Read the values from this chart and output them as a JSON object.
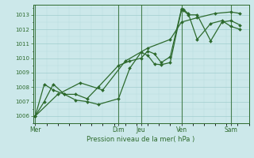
{
  "xlabel": "Pression niveau de la mer( hPa )",
  "bg_color": "#cce8ea",
  "line_color": "#2d6a2d",
  "grid_major_color": "#a0cece",
  "grid_minor_color": "#b8dede",
  "tick_color": "#2d6a2d",
  "spine_color": "#2d6a2d",
  "ylim": [
    1005.5,
    1013.7
  ],
  "yticks": [
    1006,
    1007,
    1008,
    1009,
    1010,
    1011,
    1012,
    1013
  ],
  "day_labels": [
    "Mer",
    "Dim",
    "Jeu",
    "Ven",
    "Sam"
  ],
  "day_positions": [
    0,
    37,
    47,
    65,
    87
  ],
  "xlim": [
    -1,
    95
  ],
  "line1_x": [
    0,
    4,
    8,
    13,
    18,
    23,
    28,
    37,
    42,
    47,
    50,
    53,
    56,
    60,
    65,
    66,
    68,
    72,
    78,
    83,
    87,
    91
  ],
  "line1_y": [
    1006.0,
    1007.0,
    1008.2,
    1007.5,
    1007.1,
    1007.0,
    1006.8,
    1007.2,
    1009.3,
    1010.4,
    1010.2,
    1009.6,
    1009.55,
    1009.7,
    1013.35,
    1013.3,
    1013.0,
    1013.0,
    1011.2,
    1012.5,
    1012.6,
    1012.3
  ],
  "line2_x": [
    0,
    4,
    8,
    13,
    18,
    23,
    28,
    37,
    42,
    47,
    50,
    53,
    56,
    60,
    65,
    66,
    68,
    72,
    78,
    83,
    87,
    91
  ],
  "line2_y": [
    1006.0,
    1008.2,
    1007.8,
    1007.5,
    1007.5,
    1007.2,
    1008.0,
    1009.5,
    1009.8,
    1010.0,
    1010.5,
    1010.3,
    1009.7,
    1010.1,
    1013.4,
    1013.35,
    1013.1,
    1011.3,
    1012.4,
    1012.6,
    1012.2,
    1012.0
  ],
  "line3_x": [
    0,
    10,
    20,
    30,
    40,
    50,
    60,
    65,
    72,
    80,
    87,
    91
  ],
  "line3_y": [
    1006.0,
    1007.5,
    1008.3,
    1007.8,
    1009.8,
    1010.7,
    1011.3,
    1012.5,
    1012.8,
    1013.1,
    1013.2,
    1013.1
  ],
  "marker_size": 2.0,
  "linewidth": 0.9,
  "figsize": [
    3.2,
    2.0
  ],
  "dpi": 100
}
